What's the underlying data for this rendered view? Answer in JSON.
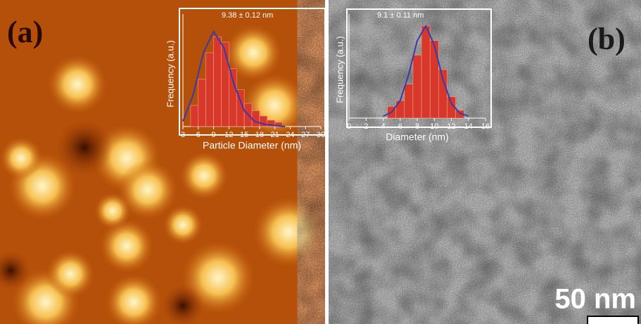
{
  "panels": [
    {
      "label": "(a)",
      "inset": {
        "type": "histogram",
        "title": "9.38 ± 0.12 nm",
        "xlabel": "Particle Diameter (nm)",
        "ylabel": "Frequency (a.u.)",
        "xlim": [
          3,
          30
        ],
        "xticks": [
          3,
          6,
          9,
          12,
          15,
          18,
          21,
          24,
          27,
          30
        ],
        "ylim": [
          0,
          100
        ],
        "bins": [
          4.5,
          6,
          7.5,
          9,
          10.5,
          12,
          13.5,
          15,
          16.5,
          18,
          19.5,
          21,
          22.5
        ],
        "counts": [
          20,
          45,
          70,
          85,
          80,
          55,
          35,
          22,
          15,
          10,
          6,
          4
        ],
        "color": "#d8382a",
        "fit_color": "#3a3aa8",
        "fit_x": [
          3,
          5,
          7,
          9,
          11,
          13,
          15,
          17,
          19,
          21,
          23
        ],
        "fit_y": [
          5,
          30,
          70,
          90,
          75,
          40,
          15,
          5,
          2,
          1,
          0
        ]
      }
    },
    {
      "label": "(b)",
      "inset": {
        "type": "histogram",
        "title": "9.1 ± 0.11 nm",
        "xlabel": "Diameter (nm)",
        "ylabel": "Frequency (a.u.)",
        "xlim": [
          0,
          16
        ],
        "xticks": [
          0,
          2,
          4,
          6,
          8,
          10,
          12,
          14,
          16
        ],
        "ylim": [
          0,
          100
        ],
        "bins": [
          4.5,
          5.5,
          6.5,
          7.5,
          8.5,
          9.5,
          10.5,
          11.5,
          12.5,
          13.5
        ],
        "counts": [
          12,
          18,
          35,
          65,
          95,
          80,
          50,
          22,
          8
        ],
        "color": "#d8382a",
        "fit_color": "#3a3aa8",
        "fit_x": [
          4,
          5,
          6,
          7,
          8,
          9,
          10,
          11,
          12,
          13,
          14
        ],
        "fit_y": [
          2,
          6,
          18,
          45,
          80,
          95,
          75,
          40,
          15,
          5,
          2
        ]
      },
      "scale_bar": "50 nm"
    }
  ]
}
